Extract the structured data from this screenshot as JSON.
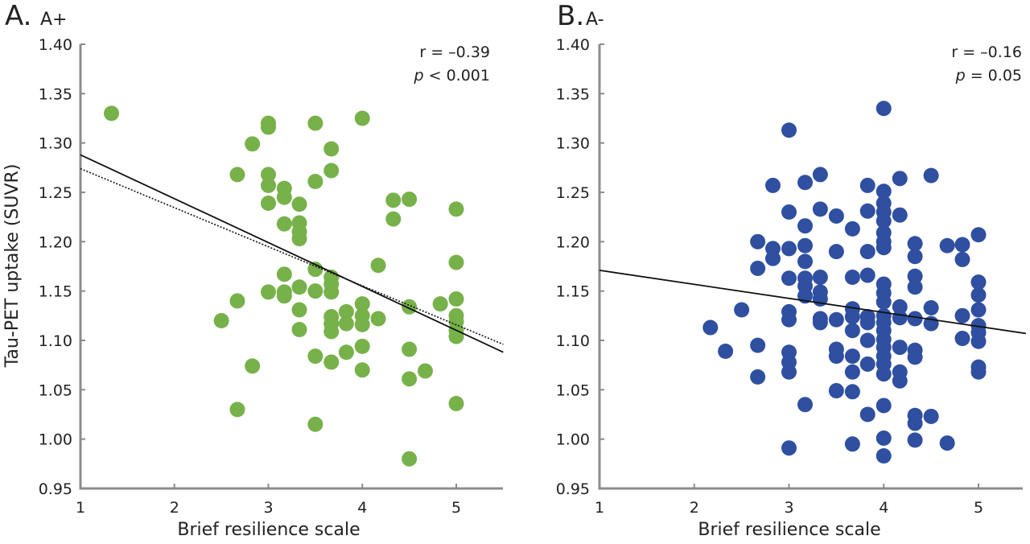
{
  "figure": {
    "ylabel": "Tau-PET uptake (SUVR)"
  },
  "chart_data": [
    {
      "type": "scatter",
      "panel_letter": "A.",
      "title": "A+",
      "xlabel": "Brief resilience scale",
      "ylabel": "Tau-PET uptake (SUVR)",
      "xlim": [
        1,
        5.5
      ],
      "ylim": [
        0.95,
        1.4
      ],
      "xticks": [
        "1",
        "2",
        "3",
        "4",
        "5"
      ],
      "xtick_values": [
        1,
        2,
        3,
        4,
        5
      ],
      "yticks": [
        "0.95",
        "1.00",
        "1.05",
        "1.10",
        "1.15",
        "1.20",
        "1.25",
        "1.30",
        "1.35",
        "1.40"
      ],
      "ytick_values": [
        0.95,
        1.0,
        1.05,
        1.1,
        1.15,
        1.2,
        1.25,
        1.3,
        1.35,
        1.4
      ],
      "grid": false,
      "marker_color": "#77b14a",
      "annotation": {
        "r": "r = –0.39",
        "p_symbol": "p",
        "p_text": " < 0.001"
      },
      "regression_lines": [
        {
          "style": "solid",
          "x": [
            1,
            5.5
          ],
          "y": [
            1.288,
            1.088
          ]
        },
        {
          "style": "dotted",
          "x": [
            1,
            5.5
          ],
          "y": [
            1.274,
            1.096
          ]
        }
      ],
      "points": [
        [
          1.33,
          1.33
        ],
        [
          2.5,
          1.12
        ],
        [
          2.67,
          1.268
        ],
        [
          2.67,
          1.14
        ],
        [
          2.67,
          1.03
        ],
        [
          2.83,
          1.299
        ],
        [
          2.83,
          1.074
        ],
        [
          3.0,
          1.32
        ],
        [
          3.0,
          1.316
        ],
        [
          3.0,
          1.268
        ],
        [
          3.0,
          1.257
        ],
        [
          3.0,
          1.239
        ],
        [
          3.0,
          1.149
        ],
        [
          3.17,
          1.254
        ],
        [
          3.17,
          1.245
        ],
        [
          3.17,
          1.218
        ],
        [
          3.17,
          1.167
        ],
        [
          3.17,
          1.149
        ],
        [
          3.17,
          1.145
        ],
        [
          3.33,
          1.238
        ],
        [
          3.33,
          1.219
        ],
        [
          3.33,
          1.21
        ],
        [
          3.33,
          1.203
        ],
        [
          3.33,
          1.154
        ],
        [
          3.33,
          1.131
        ],
        [
          3.33,
          1.111
        ],
        [
          3.5,
          1.32
        ],
        [
          3.5,
          1.261
        ],
        [
          3.5,
          1.172
        ],
        [
          3.5,
          1.15
        ],
        [
          3.5,
          1.084
        ],
        [
          3.5,
          1.015
        ],
        [
          3.67,
          1.294
        ],
        [
          3.67,
          1.272
        ],
        [
          3.67,
          1.164
        ],
        [
          3.67,
          1.157
        ],
        [
          3.67,
          1.149
        ],
        [
          3.67,
          1.124
        ],
        [
          3.67,
          1.117
        ],
        [
          3.67,
          1.109
        ],
        [
          3.67,
          1.078
        ],
        [
          3.83,
          1.129
        ],
        [
          3.83,
          1.117
        ],
        [
          3.83,
          1.088
        ],
        [
          4.0,
          1.325
        ],
        [
          4.0,
          1.137
        ],
        [
          4.0,
          1.125
        ],
        [
          4.0,
          1.116
        ],
        [
          4.0,
          1.094
        ],
        [
          4.0,
          1.07
        ],
        [
          4.17,
          1.176
        ],
        [
          4.17,
          1.122
        ],
        [
          4.33,
          1.242
        ],
        [
          4.33,
          1.223
        ],
        [
          4.5,
          1.243
        ],
        [
          4.5,
          1.134
        ],
        [
          4.5,
          1.091
        ],
        [
          4.5,
          1.061
        ],
        [
          4.5,
          0.98
        ],
        [
          4.67,
          1.069
        ],
        [
          4.83,
          1.137
        ],
        [
          5.0,
          1.233
        ],
        [
          5.0,
          1.179
        ],
        [
          5.0,
          1.142
        ],
        [
          5.0,
          1.125
        ],
        [
          5.0,
          1.119
        ],
        [
          5.0,
          1.11
        ],
        [
          5.0,
          1.104
        ],
        [
          5.0,
          1.036
        ]
      ]
    },
    {
      "type": "scatter",
      "panel_letter": "B.",
      "title": "A-",
      "xlabel": "Brief resilience scale",
      "ylabel": "",
      "xlim": [
        1,
        5.5
      ],
      "ylim": [
        0.95,
        1.4
      ],
      "xticks": [
        "1",
        "2",
        "3",
        "4",
        "5"
      ],
      "xtick_values": [
        1,
        2,
        3,
        4,
        5
      ],
      "yticks": [
        "0.95",
        "1.00",
        "1.05",
        "1.10",
        "1.15",
        "1.20",
        "1.25",
        "1.30",
        "1.35",
        "1.40"
      ],
      "ytick_values": [
        0.95,
        1.0,
        1.05,
        1.1,
        1.15,
        1.2,
        1.25,
        1.3,
        1.35,
        1.4
      ],
      "grid": false,
      "marker_color": "#2f4fa0",
      "annotation": {
        "r": "r = –0.16",
        "p_symbol": "p",
        "p_text": " = 0.05"
      },
      "regression_lines": [
        {
          "style": "solid",
          "x": [
            1,
            5.5
          ],
          "y": [
            1.171,
            1.107
          ]
        }
      ],
      "points": [
        [
          2.17,
          1.113
        ],
        [
          2.33,
          1.089
        ],
        [
          2.5,
          1.131
        ],
        [
          2.67,
          1.2
        ],
        [
          2.67,
          1.173
        ],
        [
          2.67,
          1.095
        ],
        [
          2.67,
          1.063
        ],
        [
          2.83,
          1.257
        ],
        [
          2.83,
          1.193
        ],
        [
          2.83,
          1.183
        ],
        [
          3.0,
          1.313
        ],
        [
          3.0,
          1.23
        ],
        [
          3.0,
          1.193
        ],
        [
          3.0,
          1.163
        ],
        [
          3.0,
          1.129
        ],
        [
          3.0,
          1.121
        ],
        [
          3.0,
          1.088
        ],
        [
          3.0,
          1.078
        ],
        [
          3.0,
          1.068
        ],
        [
          3.0,
          0.991
        ],
        [
          3.17,
          1.26
        ],
        [
          3.17,
          1.216
        ],
        [
          3.17,
          1.196
        ],
        [
          3.17,
          1.18
        ],
        [
          3.17,
          1.163
        ],
        [
          3.17,
          1.155
        ],
        [
          3.17,
          1.145
        ],
        [
          3.17,
          1.035
        ],
        [
          3.33,
          1.268
        ],
        [
          3.33,
          1.233
        ],
        [
          3.33,
          1.164
        ],
        [
          3.33,
          1.149
        ],
        [
          3.33,
          1.142
        ],
        [
          3.33,
          1.122
        ],
        [
          3.33,
          1.118
        ],
        [
          3.5,
          1.226
        ],
        [
          3.5,
          1.19
        ],
        [
          3.5,
          1.121
        ],
        [
          3.5,
          1.091
        ],
        [
          3.5,
          1.084
        ],
        [
          3.5,
          1.049
        ],
        [
          3.67,
          1.213
        ],
        [
          3.67,
          1.164
        ],
        [
          3.67,
          1.132
        ],
        [
          3.67,
          1.124
        ],
        [
          3.67,
          1.11
        ],
        [
          3.67,
          1.084
        ],
        [
          3.67,
          1.068
        ],
        [
          3.67,
          1.048
        ],
        [
          3.67,
          0.995
        ],
        [
          3.83,
          1.257
        ],
        [
          3.83,
          1.231
        ],
        [
          3.83,
          1.19
        ],
        [
          3.83,
          1.166
        ],
        [
          3.83,
          1.124
        ],
        [
          3.83,
          1.118
        ],
        [
          3.83,
          1.1
        ],
        [
          3.83,
          1.076
        ],
        [
          3.83,
          1.025
        ],
        [
          4.0,
          1.335
        ],
        [
          4.0,
          1.251
        ],
        [
          4.0,
          1.239
        ],
        [
          4.0,
          1.23
        ],
        [
          4.0,
          1.221
        ],
        [
          4.0,
          1.209
        ],
        [
          4.0,
          1.2
        ],
        [
          4.0,
          1.194
        ],
        [
          4.0,
          1.157
        ],
        [
          4.0,
          1.148
        ],
        [
          4.0,
          1.139
        ],
        [
          4.0,
          1.125
        ],
        [
          4.0,
          1.118
        ],
        [
          4.0,
          1.11
        ],
        [
          4.0,
          1.101
        ],
        [
          4.0,
          1.093
        ],
        [
          4.0,
          1.084
        ],
        [
          4.0,
          1.076
        ],
        [
          4.0,
          1.066
        ],
        [
          4.0,
          1.034
        ],
        [
          4.0,
          1.001
        ],
        [
          4.0,
          0.983
        ],
        [
          4.17,
          1.264
        ],
        [
          4.17,
          1.227
        ],
        [
          4.17,
          1.134
        ],
        [
          4.17,
          1.123
        ],
        [
          4.17,
          1.093
        ],
        [
          4.17,
          1.068
        ],
        [
          4.17,
          1.059
        ],
        [
          4.33,
          1.198
        ],
        [
          4.33,
          1.185
        ],
        [
          4.33,
          1.165
        ],
        [
          4.33,
          1.154
        ],
        [
          4.33,
          1.122
        ],
        [
          4.33,
          1.09
        ],
        [
          4.33,
          1.083
        ],
        [
          4.33,
          1.024
        ],
        [
          4.33,
          1.016
        ],
        [
          4.33,
          0.999
        ],
        [
          4.5,
          1.267
        ],
        [
          4.5,
          1.133
        ],
        [
          4.5,
          1.117
        ],
        [
          4.5,
          1.023
        ],
        [
          4.67,
          1.196
        ],
        [
          4.67,
          0.996
        ],
        [
          4.83,
          1.197
        ],
        [
          4.83,
          1.182
        ],
        [
          4.83,
          1.125
        ],
        [
          4.83,
          1.102
        ],
        [
          5.0,
          1.207
        ],
        [
          5.0,
          1.159
        ],
        [
          5.0,
          1.146
        ],
        [
          5.0,
          1.131
        ],
        [
          5.0,
          1.115
        ],
        [
          5.0,
          1.108
        ],
        [
          5.0,
          1.099
        ],
        [
          5.0,
          1.073
        ],
        [
          5.0,
          1.068
        ]
      ]
    }
  ]
}
